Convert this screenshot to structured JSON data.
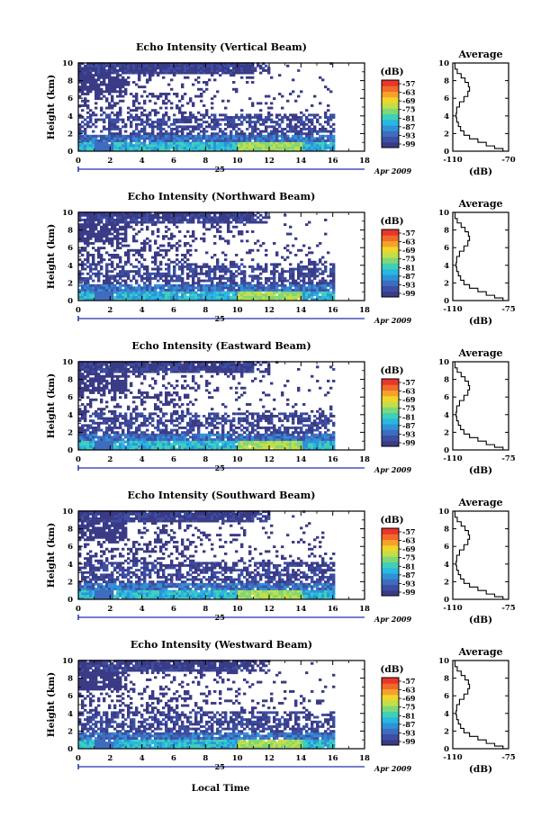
{
  "figure": {
    "common_xlabel": "Local Time",
    "month_label": "Apr 2009",
    "day_label": "25",
    "average_title": "Average",
    "average_xlabel": "(dB)",
    "colorbar_unit": "(dB)"
  },
  "colors": {
    "ramp": [
      "#3a3b86",
      "#3d4fa3",
      "#3e6cbf",
      "#2f92d6",
      "#28b8e2",
      "#3fd0b8",
      "#7ed77a",
      "#c4de48",
      "#f1d52b",
      "#f7a12a",
      "#f26a2a",
      "#e8362b"
    ],
    "axis": "#000000",
    "time_marker": "#2233aa"
  },
  "chart_data": [
    {
      "type": "heatmap",
      "title": "Echo Intensity (Vertical Beam)",
      "ylabel": "Height (km)",
      "xlim": [
        0,
        18
      ],
      "ylim": [
        0,
        10
      ],
      "xticks": [
        "0",
        "2",
        "4",
        "6",
        "8",
        "10",
        "12",
        "14",
        "16",
        "18"
      ],
      "yticks": [
        "0",
        "2",
        "4",
        "6",
        "8",
        "10"
      ],
      "colorbar_ticks": [
        "-57",
        "-63",
        "-69",
        "-75",
        "-81",
        "-87",
        "-93",
        "-99"
      ],
      "average": {
        "xticks": [
          "-110",
          "-70"
        ],
        "yticks": [
          "0",
          "2",
          "4",
          "6",
          "8",
          "10"
        ],
        "xlim": [
          -110,
          -70
        ]
      }
    },
    {
      "type": "heatmap",
      "title": "Echo Intensity (Northward Beam)",
      "ylabel": "Height (km)",
      "xlim": [
        0,
        18
      ],
      "ylim": [
        0,
        10
      ],
      "xticks": [
        "0",
        "2",
        "4",
        "6",
        "8",
        "10",
        "12",
        "14",
        "16",
        "18"
      ],
      "yticks": [
        "0",
        "2",
        "4",
        "6",
        "8",
        "10"
      ],
      "colorbar_ticks": [
        "-57",
        "-63",
        "-69",
        "-75",
        "-81",
        "-87",
        "-93",
        "-99"
      ],
      "average": {
        "xticks": [
          "-110",
          "-75"
        ],
        "yticks": [
          "0",
          "2",
          "4",
          "6",
          "8",
          "10"
        ],
        "xlim": [
          -110,
          -75
        ]
      }
    },
    {
      "type": "heatmap",
      "title": "Echo Intensity (Eastward Beam)",
      "ylabel": "Height (km)",
      "xlim": [
        0,
        18
      ],
      "ylim": [
        0,
        10
      ],
      "xticks": [
        "0",
        "2",
        "4",
        "6",
        "8",
        "10",
        "12",
        "14",
        "16",
        "18"
      ],
      "yticks": [
        "0",
        "2",
        "4",
        "6",
        "8",
        "10"
      ],
      "colorbar_ticks": [
        "-57",
        "-63",
        "-69",
        "-75",
        "-81",
        "-87",
        "-93",
        "-99"
      ],
      "average": {
        "xticks": [
          "-110",
          "-75"
        ],
        "yticks": [
          "0",
          "2",
          "4",
          "6",
          "8",
          "10"
        ],
        "xlim": [
          -110,
          -75
        ]
      }
    },
    {
      "type": "heatmap",
      "title": "Echo Intensity (Southward Beam)",
      "ylabel": "Height (km)",
      "xlim": [
        0,
        18
      ],
      "ylim": [
        0,
        10
      ],
      "xticks": [
        "0",
        "2",
        "4",
        "6",
        "8",
        "10",
        "12",
        "14",
        "16",
        "18"
      ],
      "yticks": [
        "0",
        "2",
        "4",
        "6",
        "8",
        "10"
      ],
      "colorbar_ticks": [
        "-57",
        "-63",
        "-69",
        "-75",
        "-81",
        "-87",
        "-93",
        "-99"
      ],
      "average": {
        "xticks": [
          "-110",
          "-75"
        ],
        "yticks": [
          "0",
          "2",
          "4",
          "6",
          "8",
          "10"
        ],
        "xlim": [
          -110,
          -75
        ]
      }
    },
    {
      "type": "heatmap",
      "title": "Echo Intensity (Westward Beam)",
      "ylabel": "Height (km)",
      "xlim": [
        0,
        18
      ],
      "ylim": [
        0,
        10
      ],
      "xticks": [
        "0",
        "2",
        "4",
        "6",
        "8",
        "10",
        "12",
        "14",
        "16",
        "18"
      ],
      "yticks": [
        "0",
        "2",
        "4",
        "6",
        "8",
        "10"
      ],
      "colorbar_ticks": [
        "-57",
        "-63",
        "-69",
        "-75",
        "-81",
        "-87",
        "-93",
        "-99"
      ],
      "average": {
        "xticks": [
          "-110",
          "-75"
        ],
        "yticks": [
          "0",
          "2",
          "4",
          "6",
          "8",
          "10"
        ],
        "xlim": [
          -110,
          -75
        ]
      }
    }
  ]
}
